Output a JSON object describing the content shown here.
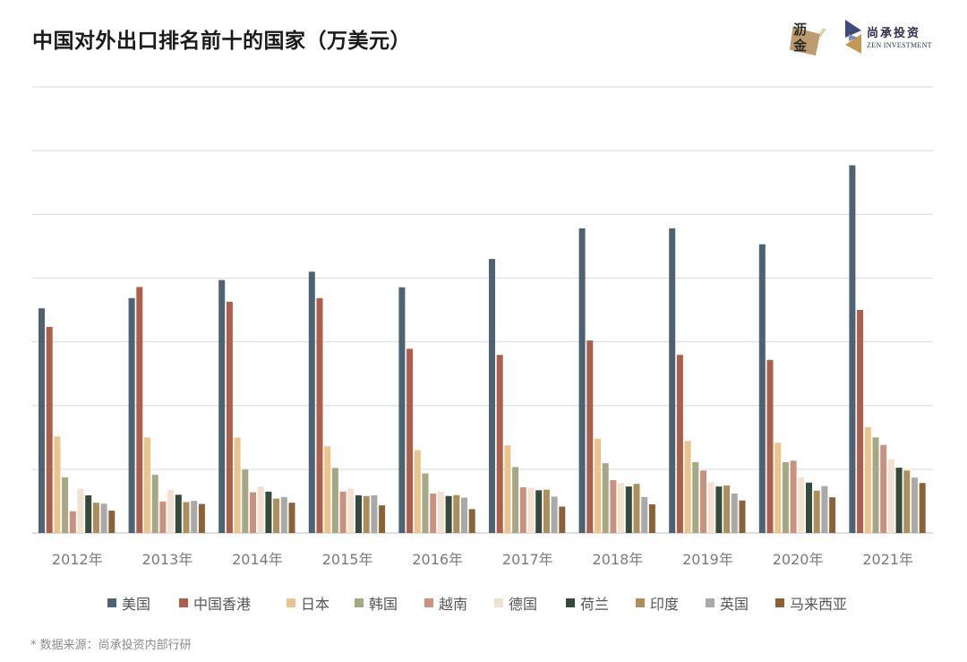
{
  "title": "中国对外出口排名前十的国家（万美元）",
  "logos": {
    "left": {
      "line1": "沥",
      "line2": "金"
    },
    "right": {
      "cn": "尚承投资",
      "en": "ZEN INVESTMENT"
    }
  },
  "source": "* 数据来源：尚承投资内部行研",
  "colors": {
    "美国": "#4d6272",
    "中国香港": "#ac5f4a",
    "日本": "#e9c48c",
    "韩国": "#a6a784",
    "越南": "#c99280",
    "德国": "#f0e2cf",
    "荷兰": "#344a3c",
    "印度": "#ab8e5c",
    "英国": "#a9a9aa",
    "马来西亚": "#8a6238"
  },
  "chart_data": {
    "type": "bar",
    "title": "中国对外出口排名前十的国家（万美元）",
    "xlabel": "",
    "ylabel": "",
    "ylim": [
      0,
      7000000
    ],
    "grid": true,
    "legend_position": "bottom",
    "categories": [
      "2012年",
      "2013年",
      "2014年",
      "2015年",
      "2016年",
      "2017年",
      "2018年",
      "2019年",
      "2020年",
      "2021年"
    ],
    "series": [
      {
        "name": "美国",
        "values": [
          3525000,
          3685000,
          3970000,
          4100000,
          3855000,
          4300000,
          4780000,
          4780000,
          4530000,
          5770000
        ]
      },
      {
        "name": "中国香港",
        "values": [
          3235000,
          3860000,
          3630000,
          3685000,
          2890000,
          2795000,
          3020000,
          2795000,
          2715000,
          3500000
        ]
      },
      {
        "name": "日本",
        "values": [
          1515000,
          1500000,
          1500000,
          1360000,
          1300000,
          1375000,
          1480000,
          1445000,
          1415000,
          1660000
        ]
      },
      {
        "name": "韩国",
        "values": [
          875000,
          915000,
          995000,
          1020000,
          935000,
          1035000,
          1095000,
          1110000,
          1110000,
          1500000
        ]
      },
      {
        "name": "越南",
        "values": [
          340000,
          495000,
          640000,
          650000,
          620000,
          720000,
          830000,
          980000,
          1135000,
          1380000
        ]
      },
      {
        "name": "德国",
        "values": [
          695000,
          675000,
          730000,
          695000,
          650000,
          710000,
          780000,
          795000,
          880000,
          1160000
        ]
      },
      {
        "name": "荷兰",
        "values": [
          590000,
          600000,
          650000,
          590000,
          580000,
          670000,
          730000,
          730000,
          790000,
          1025000
        ]
      },
      {
        "name": "印度",
        "values": [
          475000,
          485000,
          540000,
          580000,
          595000,
          680000,
          770000,
          745000,
          665000,
          980000
        ]
      },
      {
        "name": "英国",
        "values": [
          460000,
          505000,
          565000,
          590000,
          555000,
          570000,
          565000,
          620000,
          735000,
          870000
        ]
      },
      {
        "name": "马来西亚",
        "values": [
          350000,
          455000,
          475000,
          435000,
          375000,
          415000,
          450000,
          510000,
          560000,
          785000
        ]
      }
    ]
  }
}
